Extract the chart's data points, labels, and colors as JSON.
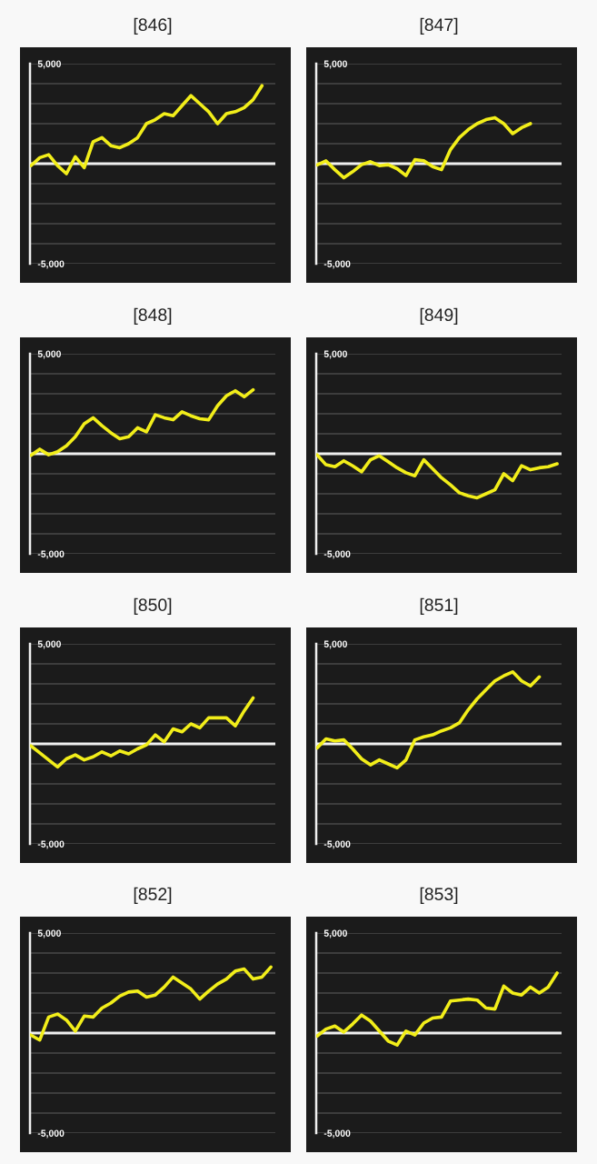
{
  "chart_data": [
    {
      "type": "line",
      "title": "[846]",
      "categories": [
        null,
        null,
        null,
        null,
        null,
        null,
        null,
        null,
        null,
        null,
        null,
        null,
        null,
        null,
        null,
        null,
        null,
        null,
        null,
        null,
        null,
        null,
        null,
        null,
        null,
        null,
        null,
        null
      ],
      "series": [
        {
          "color": "#f2ee1a",
          "values": [
            -100,
            300,
            450,
            -100,
            -500,
            350,
            -200,
            1100,
            1300,
            900,
            800,
            1000,
            1300,
            2000,
            2200,
            2500,
            2400,
            2900,
            3400,
            3000,
            2600,
            2000,
            2500,
            2600,
            2800,
            3200,
            3900,
            null
          ]
        }
      ],
      "ylim": [
        -5000,
        5000
      ],
      "yticks": [
        {
          "value": -5000,
          "label": "-5,000"
        },
        {
          "value": -4000,
          "label": null
        },
        {
          "value": -3000,
          "label": null
        },
        {
          "value": -2000,
          "label": null
        },
        {
          "value": -1000,
          "label": null
        },
        {
          "value": 0,
          "label": null
        },
        {
          "value": 1000,
          "label": null
        },
        {
          "value": 2000,
          "label": null
        },
        {
          "value": 3000,
          "label": null
        },
        {
          "value": 4000,
          "label": null
        },
        {
          "value": 5000,
          "label": "5,000"
        }
      ],
      "grid": "y",
      "tick_labels": "y",
      "ref_lines": [
        {
          "axis": "y",
          "value": 0,
          "color": "#f0f0f0"
        }
      ]
    },
    {
      "type": "line",
      "title": "[847]",
      "categories": [
        null,
        null,
        null,
        null,
        null,
        null,
        null,
        null,
        null,
        null,
        null,
        null,
        null,
        null,
        null,
        null,
        null,
        null,
        null,
        null,
        null,
        null,
        null,
        null,
        null,
        null,
        null,
        null
      ],
      "series": [
        {
          "color": "#f2ee1a",
          "values": [
            -60,
            140,
            -300,
            -700,
            -400,
            -50,
            100,
            -100,
            -50,
            -250,
            -600,
            200,
            150,
            -150,
            -300,
            700,
            1300,
            1700,
            2000,
            2200,
            2300,
            2000,
            1500,
            1800,
            2000,
            null,
            null,
            null
          ]
        }
      ],
      "ylim": [
        -5000,
        5000
      ],
      "yticks": [
        {
          "value": -5000,
          "label": "-5,000"
        },
        {
          "value": -4000,
          "label": null
        },
        {
          "value": -3000,
          "label": null
        },
        {
          "value": -2000,
          "label": null
        },
        {
          "value": -1000,
          "label": null
        },
        {
          "value": 0,
          "label": null
        },
        {
          "value": 1000,
          "label": null
        },
        {
          "value": 2000,
          "label": null
        },
        {
          "value": 3000,
          "label": null
        },
        {
          "value": 4000,
          "label": null
        },
        {
          "value": 5000,
          "label": "5,000"
        }
      ],
      "grid": "y",
      "tick_labels": "y",
      "ref_lines": [
        {
          "axis": "y",
          "value": 0,
          "color": "#f0f0f0"
        }
      ]
    },
    {
      "type": "line",
      "title": "[848]",
      "categories": [
        null,
        null,
        null,
        null,
        null,
        null,
        null,
        null,
        null,
        null,
        null,
        null,
        null,
        null,
        null,
        null,
        null,
        null,
        null,
        null,
        null,
        null,
        null,
        null,
        null,
        null,
        null,
        null
      ],
      "series": [
        {
          "color": "#f2ee1a",
          "values": [
            -80,
            230,
            -50,
            100,
            400,
            850,
            1500,
            1800,
            1400,
            1050,
            750,
            850,
            1300,
            1100,
            1950,
            1800,
            1700,
            2100,
            1900,
            1750,
            1700,
            2400,
            2900,
            3150,
            2850,
            3200,
            null,
            null
          ]
        }
      ],
      "ylim": [
        -5000,
        5000
      ],
      "yticks": [
        {
          "value": -5000,
          "label": "-5,000"
        },
        {
          "value": -4000,
          "label": null
        },
        {
          "value": -3000,
          "label": null
        },
        {
          "value": -2000,
          "label": null
        },
        {
          "value": -1000,
          "label": null
        },
        {
          "value": 0,
          "label": null
        },
        {
          "value": 1000,
          "label": null
        },
        {
          "value": 2000,
          "label": null
        },
        {
          "value": 3000,
          "label": null
        },
        {
          "value": 4000,
          "label": null
        },
        {
          "value": 5000,
          "label": "5,000"
        }
      ],
      "grid": "y",
      "tick_labels": "y",
      "ref_lines": [
        {
          "axis": "y",
          "value": 0,
          "color": "#f0f0f0"
        }
      ]
    },
    {
      "type": "line",
      "title": "[849]",
      "categories": [
        null,
        null,
        null,
        null,
        null,
        null,
        null,
        null,
        null,
        null,
        null,
        null,
        null,
        null,
        null,
        null,
        null,
        null,
        null,
        null,
        null,
        null,
        null,
        null,
        null,
        null,
        null,
        null
      ],
      "series": [
        {
          "color": "#f2ee1a",
          "values": [
            -50,
            -550,
            -650,
            -350,
            -600,
            -900,
            -300,
            -100,
            -400,
            -700,
            -950,
            -1100,
            -300,
            -750,
            -1200,
            -1550,
            -1950,
            -2100,
            -2200,
            -2000,
            -1800,
            -1000,
            -1350,
            -600,
            -800,
            -700,
            -650,
            -500
          ]
        }
      ],
      "ylim": [
        -5000,
        5000
      ],
      "yticks": [
        {
          "value": -5000,
          "label": "-5,000"
        },
        {
          "value": -4000,
          "label": null
        },
        {
          "value": -3000,
          "label": null
        },
        {
          "value": -2000,
          "label": null
        },
        {
          "value": -1000,
          "label": null
        },
        {
          "value": 0,
          "label": null
        },
        {
          "value": 1000,
          "label": null
        },
        {
          "value": 2000,
          "label": null
        },
        {
          "value": 3000,
          "label": null
        },
        {
          "value": 4000,
          "label": null
        },
        {
          "value": 5000,
          "label": "5,000"
        }
      ],
      "grid": "y",
      "tick_labels": "y",
      "ref_lines": [
        {
          "axis": "y",
          "value": 0,
          "color": "#f0f0f0"
        }
      ]
    },
    {
      "type": "line",
      "title": "[850]",
      "categories": [
        null,
        null,
        null,
        null,
        null,
        null,
        null,
        null,
        null,
        null,
        null,
        null,
        null,
        null,
        null,
        null,
        null,
        null,
        null,
        null,
        null,
        null,
        null,
        null,
        null,
        null,
        null,
        null
      ],
      "series": [
        {
          "color": "#f2ee1a",
          "values": [
            -100,
            -450,
            -800,
            -1150,
            -750,
            -550,
            -800,
            -650,
            -400,
            -600,
            -350,
            -500,
            -250,
            -50,
            450,
            100,
            750,
            600,
            1000,
            800,
            1300,
            1300,
            1300,
            900,
            1650,
            2300,
            null,
            null
          ]
        }
      ],
      "ylim": [
        -5000,
        5000
      ],
      "yticks": [
        {
          "value": -5000,
          "label": "-5,000"
        },
        {
          "value": -4000,
          "label": null
        },
        {
          "value": -3000,
          "label": null
        },
        {
          "value": -2000,
          "label": null
        },
        {
          "value": -1000,
          "label": null
        },
        {
          "value": 0,
          "label": null
        },
        {
          "value": 1000,
          "label": null
        },
        {
          "value": 2000,
          "label": null
        },
        {
          "value": 3000,
          "label": null
        },
        {
          "value": 4000,
          "label": null
        },
        {
          "value": 5000,
          "label": "5,000"
        }
      ],
      "grid": "y",
      "tick_labels": "y",
      "ref_lines": [
        {
          "axis": "y",
          "value": 0,
          "color": "#f0f0f0"
        }
      ]
    },
    {
      "type": "line",
      "title": "[851]",
      "categories": [
        null,
        null,
        null,
        null,
        null,
        null,
        null,
        null,
        null,
        null,
        null,
        null,
        null,
        null,
        null,
        null,
        null,
        null,
        null,
        null,
        null,
        null,
        null,
        null,
        null,
        null,
        null,
        null
      ],
      "series": [
        {
          "color": "#f2ee1a",
          "values": [
            -200,
            250,
            150,
            200,
            -250,
            -750,
            -1050,
            -800,
            -1000,
            -1200,
            -800,
            200,
            350,
            450,
            650,
            800,
            1050,
            1700,
            2250,
            2700,
            3150,
            3400,
            3600,
            3150,
            2900,
            3350,
            null,
            null
          ]
        }
      ],
      "ylim": [
        -5000,
        5000
      ],
      "yticks": [
        {
          "value": -5000,
          "label": "-5,000"
        },
        {
          "value": -4000,
          "label": null
        },
        {
          "value": -3000,
          "label": null
        },
        {
          "value": -2000,
          "label": null
        },
        {
          "value": -1000,
          "label": null
        },
        {
          "value": 0,
          "label": null
        },
        {
          "value": 1000,
          "label": null
        },
        {
          "value": 2000,
          "label": null
        },
        {
          "value": 3000,
          "label": null
        },
        {
          "value": 4000,
          "label": null
        },
        {
          "value": 5000,
          "label": "5,000"
        }
      ],
      "grid": "y",
      "tick_labels": "y",
      "ref_lines": [
        {
          "axis": "y",
          "value": 0,
          "color": "#f0f0f0"
        }
      ]
    },
    {
      "type": "line",
      "title": "[852]",
      "categories": [
        null,
        null,
        null,
        null,
        null,
        null,
        null,
        null,
        null,
        null,
        null,
        null,
        null,
        null,
        null,
        null,
        null,
        null,
        null,
        null,
        null,
        null,
        null,
        null,
        null,
        null,
        null,
        null
      ],
      "series": [
        {
          "color": "#f2ee1a",
          "values": [
            -100,
            -350,
            800,
            950,
            650,
            100,
            850,
            800,
            1250,
            1500,
            1850,
            2050,
            2100,
            1800,
            1900,
            2300,
            2800,
            2500,
            2200,
            1700,
            2100,
            2450,
            2700,
            3100,
            3200,
            2700,
            2800,
            3300
          ]
        }
      ],
      "ylim": [
        -5000,
        5000
      ],
      "yticks": [
        {
          "value": -5000,
          "label": "-5,000"
        },
        {
          "value": -4000,
          "label": null
        },
        {
          "value": -3000,
          "label": null
        },
        {
          "value": -2000,
          "label": null
        },
        {
          "value": -1000,
          "label": null
        },
        {
          "value": 0,
          "label": null
        },
        {
          "value": 1000,
          "label": null
        },
        {
          "value": 2000,
          "label": null
        },
        {
          "value": 3000,
          "label": null
        },
        {
          "value": 4000,
          "label": null
        },
        {
          "value": 5000,
          "label": "5,000"
        }
      ],
      "grid": "y",
      "tick_labels": "y",
      "ref_lines": [
        {
          "axis": "y",
          "value": 0,
          "color": "#f0f0f0"
        }
      ]
    },
    {
      "type": "line",
      "title": "[853]",
      "categories": [
        null,
        null,
        null,
        null,
        null,
        null,
        null,
        null,
        null,
        null,
        null,
        null,
        null,
        null,
        null,
        null,
        null,
        null,
        null,
        null,
        null,
        null,
        null,
        null,
        null,
        null,
        null,
        null
      ],
      "series": [
        {
          "color": "#f2ee1a",
          "values": [
            -150,
            200,
            350,
            50,
            450,
            900,
            600,
            100,
            -400,
            -600,
            100,
            -100,
            500,
            750,
            800,
            1600,
            1650,
            1700,
            1650,
            1250,
            1200,
            2350,
            2000,
            1900,
            2300,
            2000,
            2300,
            3000
          ]
        }
      ],
      "ylim": [
        -5000,
        5000
      ],
      "yticks": [
        {
          "value": -5000,
          "label": "-5,000"
        },
        {
          "value": -4000,
          "label": null
        },
        {
          "value": -3000,
          "label": null
        },
        {
          "value": -2000,
          "label": null
        },
        {
          "value": -1000,
          "label": null
        },
        {
          "value": 0,
          "label": null
        },
        {
          "value": 1000,
          "label": null
        },
        {
          "value": 2000,
          "label": null
        },
        {
          "value": 3000,
          "label": null
        },
        {
          "value": 4000,
          "label": null
        },
        {
          "value": 5000,
          "label": "5,000"
        }
      ],
      "grid": "y",
      "tick_labels": "y",
      "ref_lines": [
        {
          "axis": "y",
          "value": 0,
          "color": "#f0f0f0"
        }
      ]
    }
  ]
}
